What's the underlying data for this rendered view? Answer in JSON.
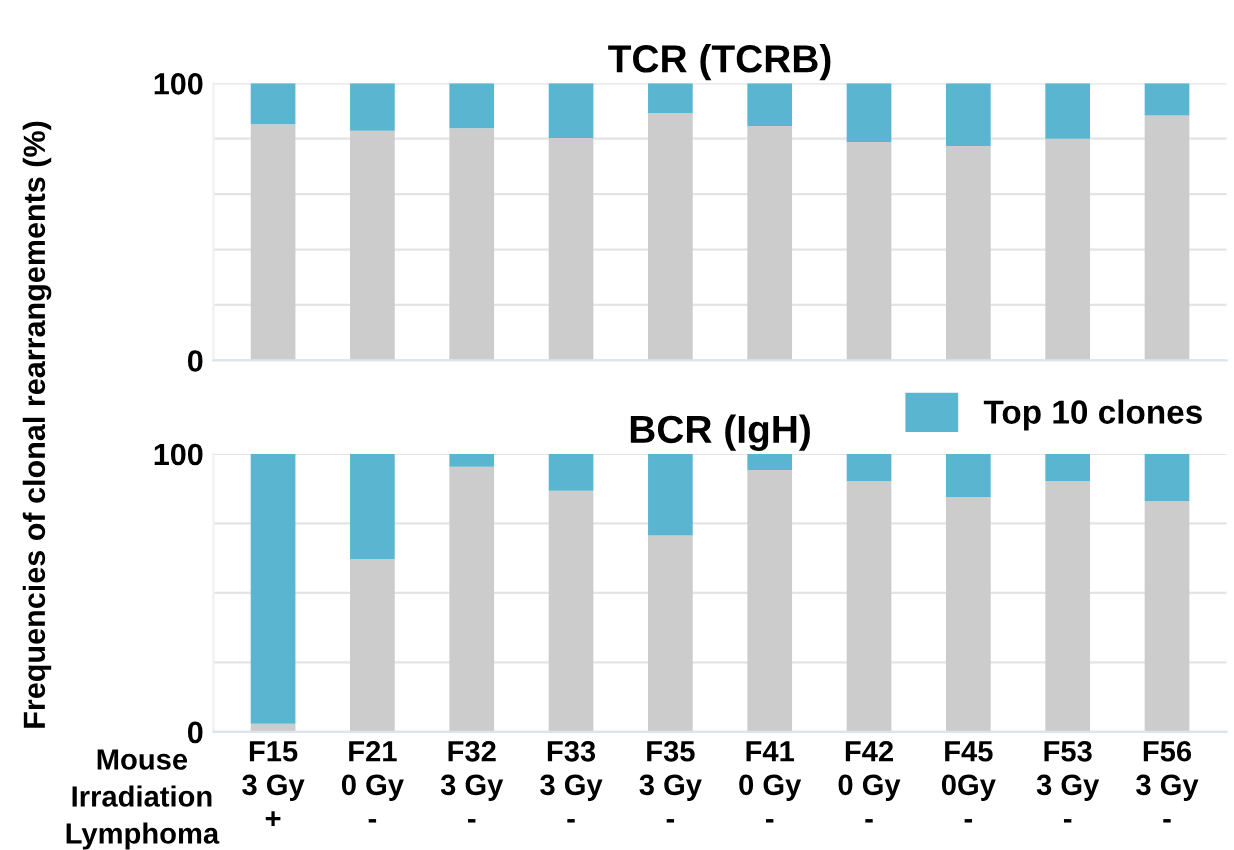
{
  "chart_data": [
    {
      "type": "bar",
      "stacked": true,
      "title": "TCR (TCRB)",
      "ylabel": "Frequencies of clonal rearrangements (%)",
      "categories": [
        null,
        null,
        null,
        null,
        null,
        null,
        null,
        null,
        null,
        null
      ],
      "series": [
        {
          "color": "#cccccc",
          "values": [
            85.2,
            82.9,
            83.8,
            80.3,
            89.3,
            84.6,
            78.8,
            77.4,
            80,
            88.4
          ]
        },
        {
          "color": "#5ab6d0",
          "values": [
            14.8,
            17.1,
            16.2,
            19.7,
            10.7,
            15.4,
            21.2,
            22.6,
            20,
            11.6
          ]
        }
      ],
      "ylim": [
        0,
        100
      ],
      "yticks": [
        0,
        {
          "value": 20,
          "label": null
        },
        {
          "value": 40,
          "label": null
        },
        {
          "value": 60,
          "label": null
        },
        {
          "value": 80,
          "label": null
        },
        100
      ],
      "grid": "y",
      "tick_labels": "y"
    },
    {
      "type": "bar",
      "stacked": true,
      "title": "BCR (IgH)",
      "categories": [
        "F15\n3 Gy\n+",
        "F21\n0 Gy\n-",
        "F32\n3 Gy\n-",
        "F33\n3 Gy\n-",
        "F35\n3 Gy\n-",
        "F41\n0 Gy\n-",
        "F42\n0 Gy\n-",
        "F45\n0Gy\n-",
        "F53\n3 Gy\n-",
        "F56\n3 Gy\n-"
      ],
      "series": [
        {
          "color": "#cccccc",
          "values": [
            2.9,
            62.2,
            95.4,
            86.7,
            70.6,
            94.2,
            90.2,
            84.4,
            90.2,
            83
          ]
        },
        {
          "name": "Top 10 clones",
          "color": "#5ab6d0",
          "values": [
            97.1,
            37.8,
            4.6,
            13.3,
            29.4,
            5.8,
            9.8,
            15.6,
            9.8,
            17
          ]
        }
      ],
      "ylim": [
        0,
        100
      ],
      "yticks": [
        0,
        {
          "value": 25,
          "label": null
        },
        {
          "value": 50,
          "label": null
        },
        {
          "value": 75,
          "label": null
        },
        100
      ],
      "grid": "y",
      "legend": "top right",
      "annotations": [
        "Mouse",
        "Irradiation",
        "Lymphoma"
      ]
    }
  ]
}
